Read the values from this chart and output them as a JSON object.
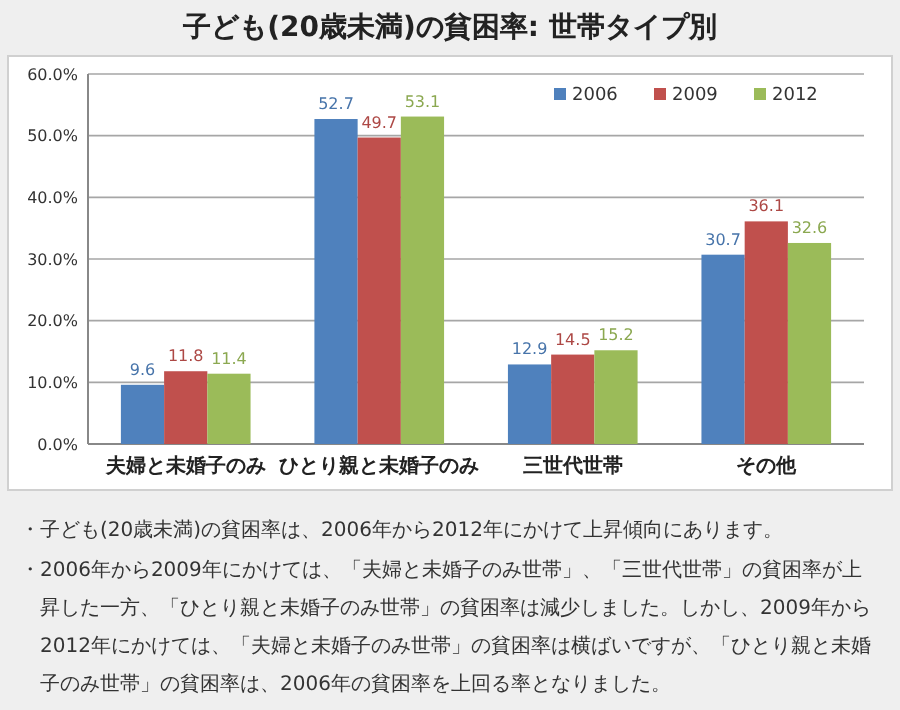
{
  "chart_data": {
    "type": "bar",
    "title": "子ども(20歳未満)の貧困率:  世帯タイプ別",
    "categories": [
      "夫婦と未婚子のみ",
      "ひとり親と未婚子のみ",
      "三世代世帯",
      "その他"
    ],
    "series": [
      {
        "name": "2006",
        "color": "#4f81bd",
        "values": [
          9.6,
          52.7,
          12.9,
          30.7
        ]
      },
      {
        "name": "2009",
        "color": "#c0504d",
        "values": [
          11.8,
          49.7,
          14.5,
          36.1
        ]
      },
      {
        "name": "2012",
        "color": "#9bbb59",
        "values": [
          11.4,
          53.1,
          15.2,
          32.6
        ]
      }
    ],
    "ylim": [
      0,
      60
    ],
    "yticks": [
      {
        "value": 0,
        "label": "0.0%"
      },
      {
        "value": 10,
        "label": "10.0%"
      },
      {
        "value": 20,
        "label": "20.0%"
      },
      {
        "value": 30,
        "label": "30.0%"
      },
      {
        "value": 40,
        "label": "40.0%"
      },
      {
        "value": 50,
        "label": "50.0%"
      },
      {
        "value": 60,
        "label": "60.0%"
      }
    ],
    "grid": "y",
    "legend": "top right",
    "data_labels": true,
    "annotations": [
      "・子ども(20歳未満)の貧困率は、2006年から2012年にかけて上昇傾向にあります。",
      "・2006年から2009年にかけては、「夫婦と未婚子のみ世帯」、「三世代世帯」の貧困率が上昇した一方、「ひとり親と未婚子のみ世帯」の貧困率は減少しました。しかし、2009年から2012年にかけては、「夫婦と未婚子のみ世帯」の貧困率は横ばいですが、「ひとり親と未婚子のみ世帯」の貧困率は、2006年の貧困率を上回る率となりました。"
    ]
  }
}
